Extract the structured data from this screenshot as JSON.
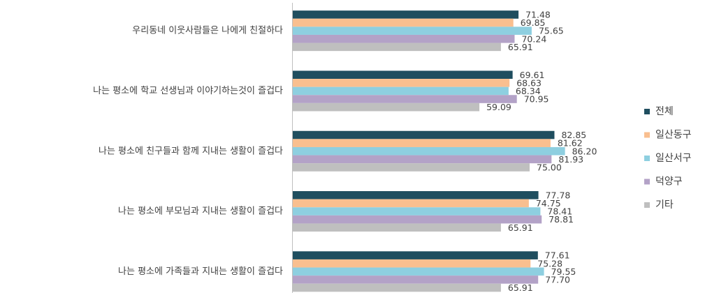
{
  "chart_data": {
    "type": "hbar",
    "categories": [
      "우리동네 이웃사람들은 나에게 친절하다",
      "나는 평소에 학교 선생님과 이야기하는것이 즐겁다",
      "나는 평소에 친구들과 함께 지내는 생활이 즐겁다",
      "나는 평소에 부모님과 지내는 생활이 즐겁다",
      "나는 평소에 가족들과 지내는 생활이 즐겁다"
    ],
    "series": [
      {
        "name": "전체",
        "color": "#1f4e5f",
        "values": [
          71.48,
          69.61,
          82.85,
          77.78,
          77.61
        ],
        "value_labels": [
          "71.48",
          "69.61",
          "82.85",
          "77.78",
          "77.61"
        ]
      },
      {
        "name": "일산동구",
        "color": "#f9bf8f",
        "values": [
          69.85,
          68.63,
          81.62,
          74.75,
          75.28
        ],
        "value_labels": [
          "69.85",
          "68.63",
          "81.62",
          "74.75",
          "75.28"
        ]
      },
      {
        "name": "일산서구",
        "color": "#8ecfe0",
        "values": [
          75.65,
          68.34,
          86.2,
          78.41,
          79.55
        ],
        "value_labels": [
          "75.65",
          "68.34",
          "86.20",
          "78.41",
          "79.55"
        ]
      },
      {
        "name": "덕양구",
        "color": "#b3a2c7",
        "values": [
          70.24,
          70.95,
          81.93,
          78.81,
          77.7
        ],
        "value_labels": [
          "70.24",
          "70.95",
          "81.93",
          "78.81",
          "77.70"
        ]
      },
      {
        "name": "기타",
        "color": "#bfbfbf",
        "values": [
          65.91,
          59.09,
          75.0,
          65.91,
          65.91
        ],
        "value_labels": [
          "65.91",
          "59.09",
          "75.00",
          "65.91",
          "65.91"
        ]
      }
    ],
    "xlim": [
      0,
      100
    ],
    "legend": "right"
  }
}
